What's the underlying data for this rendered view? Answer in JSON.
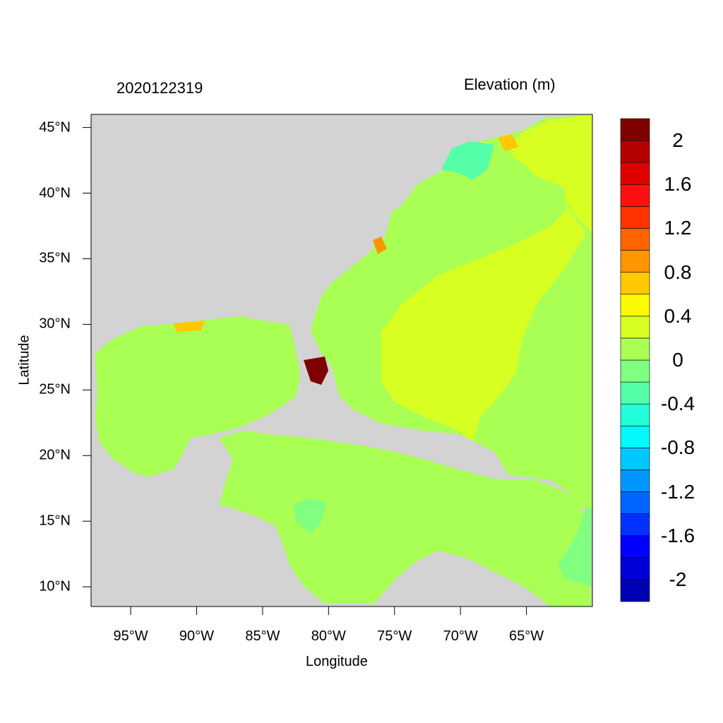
{
  "title_left": "2020122319",
  "title_right": "Elevation (m)",
  "chart_data": {
    "type": "heatmap",
    "title": "2020122319",
    "colorbar_title": "Elevation (m)",
    "xlabel": "Longitude",
    "ylabel": "Latitude",
    "xlim": [
      -98,
      -60
    ],
    "ylim": [
      8.5,
      46
    ],
    "x_ticks": [
      -95,
      -90,
      -85,
      -80,
      -75,
      -70,
      -65
    ],
    "x_tick_labels": [
      "95°W",
      "90°W",
      "85°W",
      "80°W",
      "75°W",
      "70°W",
      "65°W"
    ],
    "y_ticks": [
      10,
      15,
      20,
      25,
      30,
      35,
      40,
      45
    ],
    "y_tick_labels": [
      "10°N",
      "15°N",
      "20°N",
      "25°N",
      "30°N",
      "35°N",
      "40°N",
      "45°N"
    ],
    "colorbar": {
      "colors": [
        "#0000b4",
        "#0000d8",
        "#0000ff",
        "#0032ff",
        "#0064ff",
        "#0096ff",
        "#00c8ff",
        "#00fafa",
        "#22ffd8",
        "#55ffaa",
        "#80ff80",
        "#aaff55",
        "#d8ff22",
        "#fafa00",
        "#ffc800",
        "#ff9600",
        "#ff6400",
        "#ff3200",
        "#ff1010",
        "#e00000",
        "#b40000",
        "#800000"
      ],
      "tick_values": [
        -2,
        -1.6,
        -1.2,
        -0.8,
        -0.4,
        0,
        0.4,
        0.8,
        1.2,
        1.6,
        2
      ],
      "tick_labels": [
        "-2",
        "-1.6",
        "-1.2",
        "-0.8",
        "-0.4",
        "0",
        "0.4",
        "0.8",
        "1.2",
        "1.6",
        "2"
      ]
    },
    "legend_placement": "right",
    "land_color": "#d3d3d3"
  }
}
